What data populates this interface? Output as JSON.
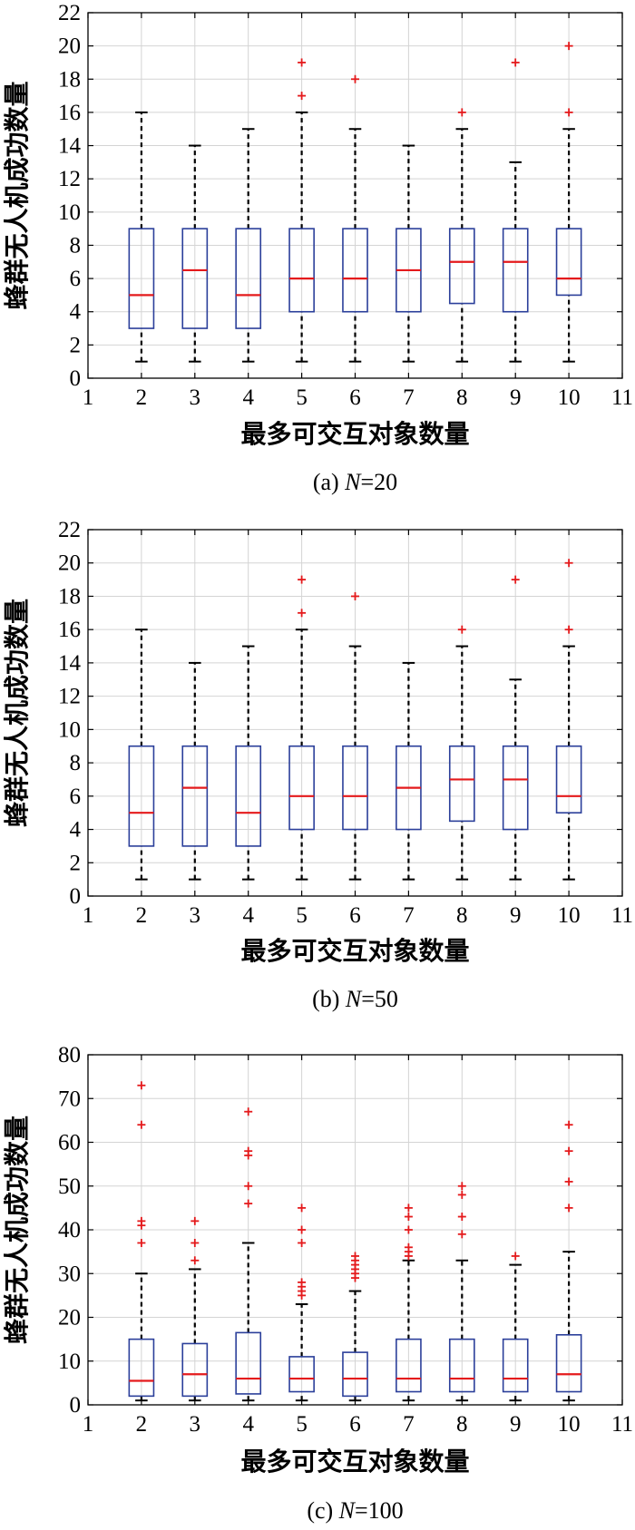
{
  "chart_data": [
    {
      "type": "box",
      "caption_prefix": "(a) ",
      "caption_var": "N",
      "caption_suffix": "=20",
      "xlabel": "最多可交互对象数量",
      "ylabel": "蜂群无人机成功数量",
      "xlim": [
        1,
        11
      ],
      "ylim": [
        0,
        22
      ],
      "xticks": [
        1,
        2,
        3,
        4,
        5,
        6,
        7,
        8,
        9,
        10,
        11
      ],
      "yticks": [
        0,
        2,
        4,
        6,
        8,
        10,
        12,
        14,
        16,
        18,
        20,
        22
      ],
      "grid": true,
      "boxes": [
        {
          "x": 2,
          "min": 1,
          "q1": 3,
          "median": 5,
          "q3": 9,
          "max": 16,
          "outliers": []
        },
        {
          "x": 3,
          "min": 1,
          "q1": 3,
          "median": 6.5,
          "q3": 9,
          "max": 14,
          "outliers": []
        },
        {
          "x": 4,
          "min": 1,
          "q1": 3,
          "median": 5,
          "q3": 9,
          "max": 15,
          "outliers": []
        },
        {
          "x": 5,
          "min": 1,
          "q1": 4,
          "median": 6,
          "q3": 9,
          "max": 16,
          "outliers": [
            17,
            19
          ]
        },
        {
          "x": 6,
          "min": 1,
          "q1": 4,
          "median": 6,
          "q3": 9,
          "max": 15,
          "outliers": [
            18
          ]
        },
        {
          "x": 7,
          "min": 1,
          "q1": 4,
          "median": 6.5,
          "q3": 9,
          "max": 14,
          "outliers": []
        },
        {
          "x": 8,
          "min": 1,
          "q1": 4.5,
          "median": 7,
          "q3": 9,
          "max": 15,
          "outliers": [
            16
          ]
        },
        {
          "x": 9,
          "min": 1,
          "q1": 4,
          "median": 7,
          "q3": 9,
          "max": 13,
          "outliers": [
            19
          ]
        },
        {
          "x": 10,
          "min": 1,
          "q1": 5,
          "median": 6,
          "q3": 9,
          "max": 15,
          "outliers": [
            16,
            20
          ]
        }
      ]
    },
    {
      "type": "box",
      "caption_prefix": "(b) ",
      "caption_var": "N",
      "caption_suffix": "=50",
      "xlabel": "最多可交互对象数量",
      "ylabel": "蜂群无人机成功数量",
      "xlim": [
        1,
        11
      ],
      "ylim": [
        0,
        22
      ],
      "xticks": [
        1,
        2,
        3,
        4,
        5,
        6,
        7,
        8,
        9,
        10,
        11
      ],
      "yticks": [
        0,
        2,
        4,
        6,
        8,
        10,
        12,
        14,
        16,
        18,
        20,
        22
      ],
      "grid": true,
      "boxes": [
        {
          "x": 2,
          "min": 1,
          "q1": 3,
          "median": 5,
          "q3": 9,
          "max": 16,
          "outliers": []
        },
        {
          "x": 3,
          "min": 1,
          "q1": 3,
          "median": 6.5,
          "q3": 9,
          "max": 14,
          "outliers": []
        },
        {
          "x": 4,
          "min": 1,
          "q1": 3,
          "median": 5,
          "q3": 9,
          "max": 15,
          "outliers": []
        },
        {
          "x": 5,
          "min": 1,
          "q1": 4,
          "median": 6,
          "q3": 9,
          "max": 16,
          "outliers": [
            17,
            19
          ]
        },
        {
          "x": 6,
          "min": 1,
          "q1": 4,
          "median": 6,
          "q3": 9,
          "max": 15,
          "outliers": [
            18
          ]
        },
        {
          "x": 7,
          "min": 1,
          "q1": 4,
          "median": 6.5,
          "q3": 9,
          "max": 14,
          "outliers": []
        },
        {
          "x": 8,
          "min": 1,
          "q1": 4.5,
          "median": 7,
          "q3": 9,
          "max": 15,
          "outliers": [
            16
          ]
        },
        {
          "x": 9,
          "min": 1,
          "q1": 4,
          "median": 7,
          "q3": 9,
          "max": 13,
          "outliers": [
            19
          ]
        },
        {
          "x": 10,
          "min": 1,
          "q1": 5,
          "median": 6,
          "q3": 9,
          "max": 15,
          "outliers": [
            16,
            20
          ]
        }
      ]
    },
    {
      "type": "box",
      "caption_prefix": "(c) ",
      "caption_var": "N",
      "caption_suffix": "=100",
      "xlabel": "最多可交互对象数量",
      "ylabel": "蜂群无人机成功数量",
      "xlim": [
        1,
        11
      ],
      "ylim": [
        0,
        80
      ],
      "xticks": [
        1,
        2,
        3,
        4,
        5,
        6,
        7,
        8,
        9,
        10,
        11
      ],
      "yticks": [
        0,
        10,
        20,
        30,
        40,
        50,
        60,
        70,
        80
      ],
      "grid": true,
      "boxes": [
        {
          "x": 2,
          "min": 1,
          "q1": 2,
          "median": 5.5,
          "q3": 15,
          "max": 30,
          "outliers": [
            37,
            41,
            42,
            64,
            73
          ]
        },
        {
          "x": 3,
          "min": 1,
          "q1": 2,
          "median": 7,
          "q3": 14,
          "max": 31,
          "outliers": [
            33,
            37,
            42
          ]
        },
        {
          "x": 4,
          "min": 1,
          "q1": 2.5,
          "median": 6,
          "q3": 16.5,
          "max": 37,
          "outliers": [
            46,
            50,
            57,
            58,
            67
          ]
        },
        {
          "x": 5,
          "min": 1,
          "q1": 3,
          "median": 6,
          "q3": 11,
          "max": 23,
          "outliers": [
            25,
            26,
            27,
            28,
            37,
            40,
            45
          ]
        },
        {
          "x": 6,
          "min": 1,
          "q1": 2,
          "median": 6,
          "q3": 12,
          "max": 26,
          "outliers": [
            29,
            30,
            31,
            32,
            33,
            34
          ]
        },
        {
          "x": 7,
          "min": 1,
          "q1": 3,
          "median": 6,
          "q3": 15,
          "max": 33,
          "outliers": [
            34,
            35,
            36,
            40,
            43,
            45
          ]
        },
        {
          "x": 8,
          "min": 1,
          "q1": 3,
          "median": 6,
          "q3": 15,
          "max": 33,
          "outliers": [
            39,
            43,
            48,
            50
          ]
        },
        {
          "x": 9,
          "min": 1,
          "q1": 3,
          "median": 6,
          "q3": 15,
          "max": 32,
          "outliers": [
            34
          ]
        },
        {
          "x": 10,
          "min": 1,
          "q1": 3,
          "median": 7,
          "q3": 16,
          "max": 35,
          "outliers": [
            45,
            51,
            58,
            64
          ]
        }
      ]
    }
  ],
  "colors": {
    "box": "#2b3f9a",
    "median": "#e41a1c",
    "outlier": "#e41a1c",
    "whisker": "#000000",
    "grid": "#d4d4d4",
    "axis": "#000000"
  }
}
